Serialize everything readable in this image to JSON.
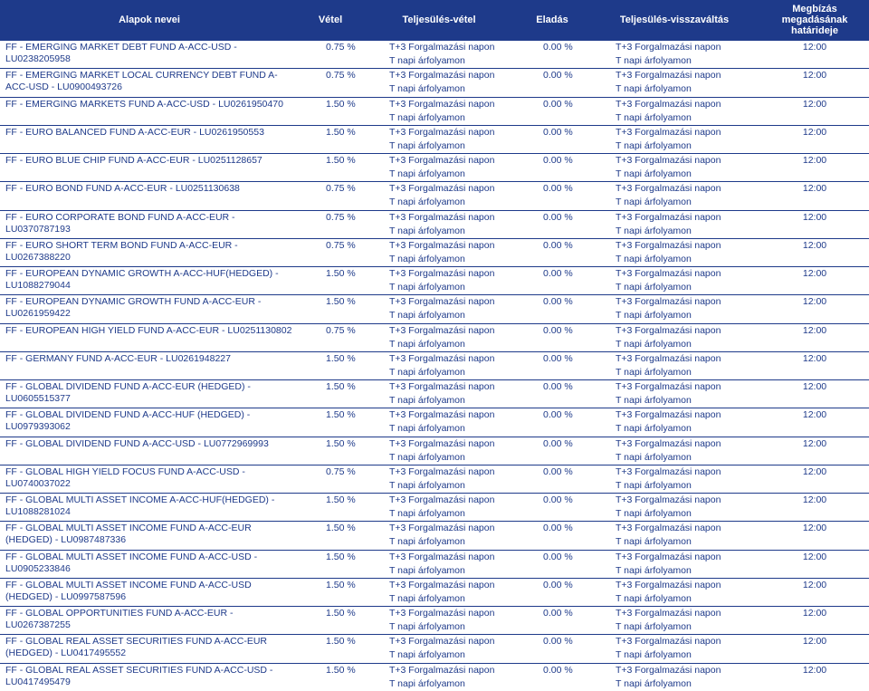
{
  "header": {
    "name": "Alapok nevei",
    "vetel": "Vétel",
    "tv": "Teljesülés-vétel",
    "eladas": "Eladás",
    "tvv": "Teljesülés-visszaváltás",
    "time": "Megbízás megadásának határideje"
  },
  "common": {
    "tv_line1": "T+3 Forgalmazási napon",
    "tv_line2": "T napi árfolyamon",
    "eladas": "0.00 %",
    "tvv_line1": "T+3 Forgalmazási napon",
    "tvv_line2": "T napi árfolyamon",
    "time": "12:00"
  },
  "rows": [
    {
      "name": "FF - EMERGING MARKET DEBT FUND A-ACC-USD - LU0238205958",
      "vetel": "0.75 %"
    },
    {
      "name": "FF - EMERGING MARKET LOCAL CURRENCY DEBT FUND A-ACC-USD - LU0900493726",
      "vetel": "0.75 %"
    },
    {
      "name": "FF - EMERGING MARKETS FUND A-ACC-USD - LU0261950470",
      "vetel": "1.50 %"
    },
    {
      "name": "FF - EURO BALANCED FUND A-ACC-EUR - LU0261950553",
      "vetel": "1.50 %"
    },
    {
      "name": "FF - EURO BLUE CHIP FUND A-ACC-EUR - LU0251128657",
      "vetel": "1.50 %"
    },
    {
      "name": "FF - EURO BOND FUND A-ACC-EUR - LU0251130638",
      "vetel": "0.75 %"
    },
    {
      "name": "FF - EURO CORPORATE BOND FUND A-ACC-EUR - LU0370787193",
      "vetel": "0.75 %"
    },
    {
      "name": "FF - EURO SHORT TERM BOND FUND A-ACC-EUR - LU0267388220",
      "vetel": "0.75 %"
    },
    {
      "name": "FF - EUROPEAN DYNAMIC  GROWTH A-ACC-HUF(HEDGED)  - LU1088279044",
      "vetel": "1.50 %"
    },
    {
      "name": "FF - EUROPEAN DYNAMIC GROWTH FUND A-ACC-EUR - LU0261959422",
      "vetel": "1.50 %"
    },
    {
      "name": "FF - EUROPEAN HIGH YIELD FUND A-ACC-EUR - LU0251130802",
      "vetel": "0.75 %"
    },
    {
      "name": "FF - GERMANY FUND A-ACC-EUR - LU0261948227",
      "vetel": "1.50 %"
    },
    {
      "name": "FF - GLOBAL DIVIDEND FUND A-ACC-EUR (HEDGED) - LU0605515377",
      "vetel": "1.50 %"
    },
    {
      "name": "FF - GLOBAL DIVIDEND FUND A-ACC-HUF (HEDGED) - LU0979393062",
      "vetel": "1.50 %"
    },
    {
      "name": "FF - GLOBAL DIVIDEND FUND A-ACC-USD - LU0772969993",
      "vetel": "1.50 %"
    },
    {
      "name": "FF - GLOBAL HIGH YIELD FOCUS FUND A-ACC-USD - LU0740037022",
      "vetel": "0.75 %"
    },
    {
      "name": "FF - GLOBAL MULTI ASSET INCOME A-ACC-HUF(HEDGED) - LU1088281024",
      "vetel": "1.50 %"
    },
    {
      "name": "FF - GLOBAL MULTI ASSET INCOME FUND A-ACC-EUR (HEDGED) - LU0987487336",
      "vetel": "1.50 %"
    },
    {
      "name": "FF - GLOBAL MULTI ASSET INCOME FUND A-ACC-USD - LU0905233846",
      "vetel": "1.50 %"
    },
    {
      "name": "FF - GLOBAL MULTI ASSET INCOME FUND A-ACC-USD (HEDGED) - LU0997587596",
      "vetel": "1.50 %"
    },
    {
      "name": "FF - GLOBAL OPPORTUNITIES FUND A-ACC-EUR - LU0267387255",
      "vetel": "1.50 %"
    },
    {
      "name": "FF - GLOBAL REAL ASSET SECURITIES FUND A-ACC-EUR (HEDGED) - LU0417495552",
      "vetel": "1.50 %"
    },
    {
      "name": "FF - GLOBAL REAL ASSET SECURITIES FUND A-ACC-USD - LU0417495479",
      "vetel": "1.50 %"
    }
  ]
}
